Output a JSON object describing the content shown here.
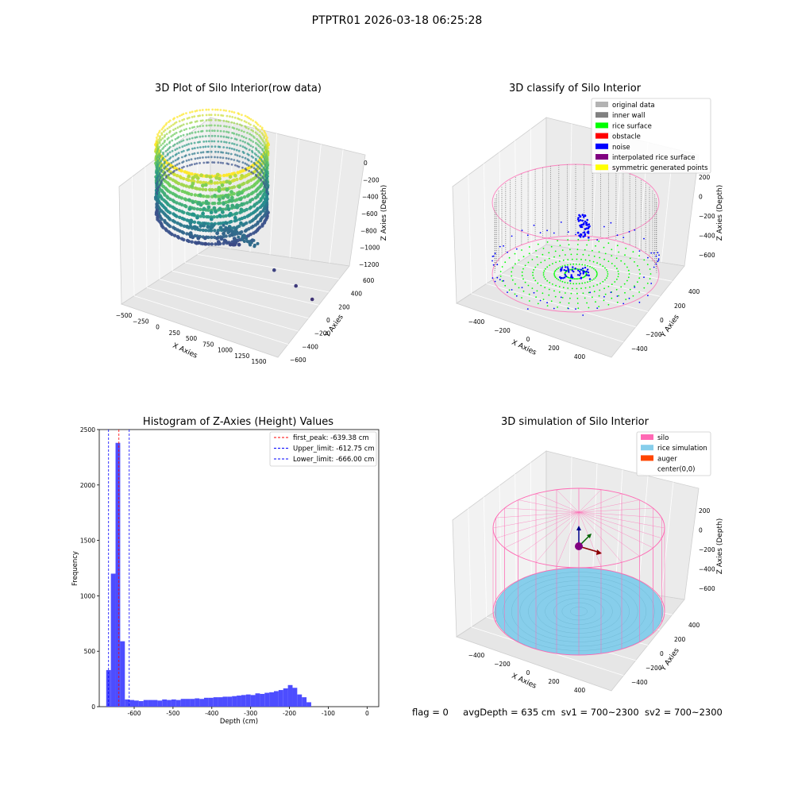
{
  "figure_title": "PTPTR01 2026-03-18 06:25:28",
  "status_line": {
    "flag": "flag = 0",
    "avg_depth": "avgDepth = 635 cm",
    "sv1": "sv1 = 700~2300",
    "sv2": "sv2 = 700~2300"
  },
  "colors": {
    "original_data": "#b3b3b3",
    "inner_wall": "#808080",
    "rice_surface": "#00ff00",
    "obstacle": "#ff0000",
    "noise": "#0000ff",
    "interpolated": "#800080",
    "symmetric": "#ffff00",
    "silo": "#ff69b4",
    "rice_simulation": "#87ceeb",
    "auger": "#ff4500",
    "histogram_bar": "#4d4dff"
  },
  "chart_data": [
    {
      "type": "scatter",
      "subtype": "3d",
      "title": "3D Plot of Silo Interior(row data)",
      "xlabel": "X Axies",
      "ylabel": "Y Axies",
      "zlabel": "Z Axies (Depth)",
      "x_ticks": [
        "−500",
        "−250",
        "0",
        "250",
        "500",
        "750",
        "1000",
        "1250",
        "1500"
      ],
      "y_ticks": [
        "−600",
        "−400",
        "−200",
        "0",
        "200",
        "400",
        "600"
      ],
      "z_ticks": [
        "0",
        "−200",
        "−400",
        "−600",
        "−800",
        "−1000",
        "−1200"
      ],
      "colormap": "viridis",
      "outlier_points": [
        {
          "x": 900,
          "y": 0,
          "z": -900
        },
        {
          "x": 1100,
          "y": -100,
          "z": -1100
        },
        {
          "x": 1300,
          "y": -300,
          "z": -1150
        },
        {
          "x": 1450,
          "y": -450,
          "z": -1200
        }
      ]
    },
    {
      "type": "scatter",
      "subtype": "3d",
      "title": "3D classify of Silo Interior",
      "xlabel": "X Axies",
      "ylabel": "Y Axies",
      "zlabel": "Z Axies (Depth)",
      "x_ticks": [
        "−400",
        "−200",
        "0",
        "200",
        "400"
      ],
      "y_ticks": [
        "−400",
        "−200",
        "0",
        "200",
        "400"
      ],
      "z_ticks": [
        "200",
        "0",
        "−200",
        "−400",
        "−600"
      ],
      "legend_position": "top-right",
      "legend": [
        {
          "label": "original data",
          "color_key": "original_data"
        },
        {
          "label": "inner wall",
          "color_key": "inner_wall"
        },
        {
          "label": "rice surface",
          "color_key": "rice_surface"
        },
        {
          "label": "obstacle",
          "color_key": "obstacle"
        },
        {
          "label": "noise",
          "color_key": "noise"
        },
        {
          "label": "interpolated rice surface",
          "color_key": "interpolated"
        },
        {
          "label": "symmetric generated points",
          "color_key": "symmetric"
        }
      ]
    },
    {
      "type": "bar",
      "subtype": "histogram",
      "title": "Histogram of Z-Axies (Height) Values",
      "xlabel": "Depth (cm)",
      "ylabel": "Frequency",
      "xlim": [
        -690,
        30
      ],
      "ylim": [
        0,
        2500
      ],
      "x_ticks": [
        -600,
        -500,
        -400,
        -300,
        -200,
        -100,
        0
      ],
      "y_ticks": [
        0,
        500,
        1000,
        1500,
        2000,
        2500
      ],
      "bin_start": -672,
      "bin_width": 12,
      "values": [
        330,
        1200,
        2380,
        590,
        65,
        60,
        55,
        50,
        60,
        60,
        60,
        55,
        65,
        60,
        65,
        60,
        70,
        70,
        70,
        75,
        70,
        80,
        80,
        85,
        85,
        90,
        90,
        95,
        100,
        105,
        110,
        105,
        120,
        115,
        125,
        130,
        140,
        150,
        165,
        195,
        170,
        110,
        85,
        40
      ],
      "lines": [
        {
          "label": "first_peak: -639.38 cm",
          "value": -639.38,
          "style": "red-dashed"
        },
        {
          "label": "Upper_limit: -612.75 cm",
          "value": -612.75,
          "style": "blue-dashed"
        },
        {
          "label": "Lower_limit: -666.00 cm",
          "value": -666.0,
          "style": "blue-dashed"
        }
      ],
      "legend_position": "top-right"
    },
    {
      "type": "scatter",
      "subtype": "3d-surface",
      "title": "3D simulation of Silo Interior",
      "xlabel": "X Axies",
      "ylabel": "Y Axies",
      "zlabel": "Z Axies (Depth)",
      "x_ticks": [
        "−400",
        "−200",
        "0",
        "200",
        "400"
      ],
      "y_ticks": [
        "−400",
        "−200",
        "0",
        "200",
        "400"
      ],
      "z_ticks": [
        "200",
        "0",
        "−200",
        "−400",
        "−600"
      ],
      "legend_position": "top-right",
      "legend": [
        {
          "label": "silo",
          "color_key": "silo"
        },
        {
          "label": "rice simulation",
          "color_key": "rice_simulation"
        },
        {
          "label": "auger",
          "color_key": "auger"
        },
        {
          "label": "center(0,0)",
          "color_key": ""
        }
      ]
    }
  ]
}
